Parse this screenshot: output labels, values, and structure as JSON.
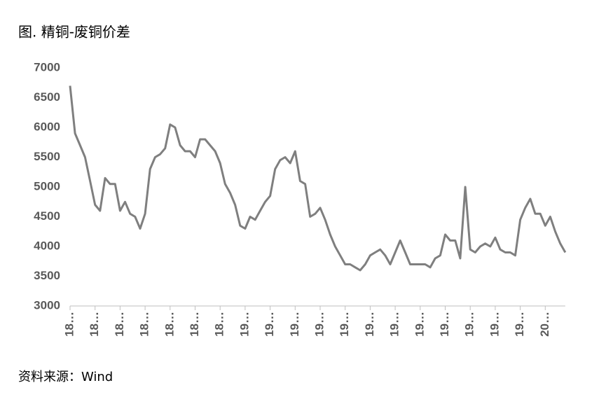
{
  "chart_data": {
    "type": "line",
    "title": "图. 精铜-废铜价差",
    "source": "资料来源：Wind",
    "color": "#7f7f7f",
    "categories": [
      "18…",
      null,
      null,
      null,
      null,
      "18…",
      null,
      null,
      null,
      null,
      "18…",
      null,
      null,
      null,
      null,
      "18…",
      null,
      null,
      null,
      null,
      "18…",
      null,
      null,
      null,
      null,
      "18…",
      null,
      null,
      null,
      null,
      "18…",
      null,
      null,
      null,
      null,
      "19…",
      null,
      null,
      null,
      null,
      "19…",
      null,
      null,
      null,
      null,
      "19…",
      null,
      null,
      null,
      null,
      "19…",
      null,
      null,
      null,
      null,
      "19…",
      null,
      null,
      null,
      null,
      "19…",
      null,
      null,
      null,
      null,
      "19…",
      null,
      null,
      null,
      null,
      "19…",
      null,
      null,
      null,
      null,
      "19…",
      null,
      null,
      null,
      null,
      "19…",
      null,
      null,
      null,
      null,
      "19…",
      null,
      null,
      null,
      null,
      "19…",
      null,
      null,
      null,
      null,
      "20…",
      null,
      null,
      null,
      null
    ],
    "values": [
      6700,
      5900,
      5700,
      5500,
      5100,
      4700,
      4600,
      5150,
      5050,
      5050,
      4600,
      4750,
      4550,
      4500,
      4300,
      4550,
      5300,
      5500,
      5550,
      5650,
      6050,
      6000,
      5700,
      5600,
      5600,
      5500,
      5800,
      5800,
      5700,
      5600,
      5400,
      5050,
      4900,
      4700,
      4350,
      4300,
      4500,
      4450,
      4600,
      4750,
      4850,
      5300,
      5450,
      5500,
      5400,
      5600,
      5100,
      5050,
      4500,
      4550,
      4650,
      4450,
      4200,
      4000,
      3850,
      3700,
      3700,
      3650,
      3600,
      3700,
      3850,
      3900,
      3950,
      3850,
      3700,
      3900,
      4100,
      3900,
      3700,
      3700,
      3700,
      3700,
      3650,
      3800,
      3850,
      4200,
      4100,
      4100,
      3800,
      5000,
      3950,
      3900,
      4000,
      4050,
      4000,
      4150,
      3950,
      3900,
      3900,
      3850,
      4450,
      4650,
      4800,
      4550,
      4550,
      4350,
      4500,
      4250,
      4050,
      3900
    ],
    "ylim": [
      3000,
      7000
    ],
    "yticks": [
      3000,
      3500,
      4000,
      4500,
      5000,
      5500,
      6000,
      6500,
      7000
    ]
  }
}
